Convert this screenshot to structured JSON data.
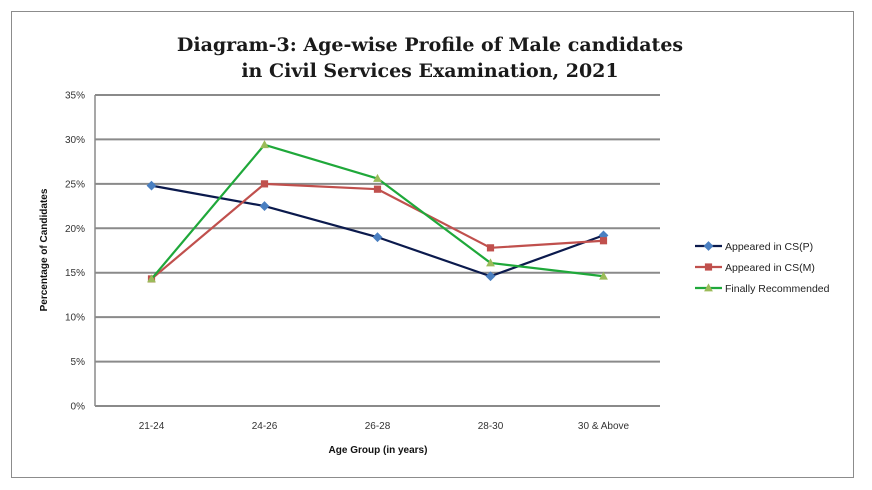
{
  "chart_data": {
    "type": "line",
    "title_lines": [
      "Diagram-3: Age-wise Profile of Male candidates",
      "in Civil Services Examination, 2021"
    ],
    "xlabel": "Age Group (in years)",
    "ylabel": "Percentage of Candidates",
    "categories": [
      "21-24",
      "24-26",
      "26-28",
      "28-30",
      "30 & Above"
    ],
    "ylim": [
      0,
      35
    ],
    "yticks": [
      0,
      5,
      10,
      15,
      20,
      25,
      30,
      35
    ],
    "ytick_labels": [
      "0%",
      "5%",
      "10%",
      "15%",
      "20%",
      "25%",
      "30%",
      "35%"
    ],
    "grid": true,
    "legend_position": "right",
    "series": [
      {
        "name": "Appeared in CS(P)",
        "values": [
          24.8,
          22.5,
          19.0,
          14.6,
          19.2
        ],
        "color": "#0b1a4d",
        "marker_color": "#4a7fc1",
        "marker": "diamond"
      },
      {
        "name": "Appeared in CS(M)",
        "values": [
          14.3,
          25.0,
          24.4,
          17.8,
          18.6
        ],
        "color": "#c0504d",
        "marker_color": "#c0504d",
        "marker": "square"
      },
      {
        "name": "Finally Recommended",
        "values": [
          14.3,
          29.4,
          25.6,
          16.1,
          14.6
        ],
        "color": "#1fa83a",
        "marker_color": "#9bbb59",
        "marker": "triangle"
      }
    ]
  }
}
